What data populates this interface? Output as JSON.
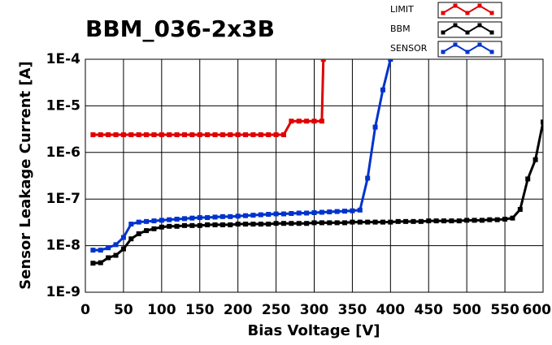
{
  "chart_data": {
    "type": "line",
    "title": "BBM_036-2x3B",
    "x_label": "Bias Voltage [V]",
    "y_label": "Sensor Leakage Current [A]",
    "ylog": true,
    "grid": true,
    "legend": "top-right",
    "xlim": [
      0,
      600
    ],
    "xticks": [
      0,
      50,
      100,
      150,
      200,
      250,
      300,
      350,
      400,
      450,
      500,
      550,
      600
    ],
    "ylim": [
      1e-09,
      0.0001
    ],
    "yticks": [
      {
        "value": 1e-09,
        "label": "1E-9"
      },
      {
        "value": 1e-08,
        "label": "1E-8"
      },
      {
        "value": 1e-07,
        "label": "1E-7"
      },
      {
        "value": 1e-06,
        "label": "1E-6"
      },
      {
        "value": 1e-05,
        "label": "1E-5"
      },
      {
        "value": 0.0001,
        "label": "1E-4"
      }
    ],
    "series": [
      {
        "name": "LIMIT",
        "color": "#e00000",
        "x": [
          10,
          20,
          30,
          40,
          50,
          60,
          70,
          80,
          90,
          100,
          110,
          120,
          130,
          140,
          150,
          160,
          170,
          180,
          190,
          200,
          210,
          220,
          230,
          240,
          250,
          260,
          270,
          280,
          290,
          300,
          310,
          312
        ],
        "values": [
          2.4e-06,
          2.4e-06,
          2.4e-06,
          2.4e-06,
          2.4e-06,
          2.4e-06,
          2.4e-06,
          2.4e-06,
          2.4e-06,
          2.4e-06,
          2.4e-06,
          2.4e-06,
          2.4e-06,
          2.4e-06,
          2.4e-06,
          2.4e-06,
          2.4e-06,
          2.4e-06,
          2.4e-06,
          2.4e-06,
          2.4e-06,
          2.4e-06,
          2.4e-06,
          2.4e-06,
          2.4e-06,
          2.4e-06,
          4.7e-06,
          4.7e-06,
          4.7e-06,
          4.7e-06,
          4.7e-06,
          0.0001
        ]
      },
      {
        "name": "BBM",
        "color": "#000000",
        "x": [
          10,
          20,
          30,
          40,
          50,
          60,
          70,
          80,
          90,
          100,
          110,
          120,
          130,
          140,
          150,
          160,
          170,
          180,
          190,
          200,
          210,
          220,
          230,
          240,
          250,
          260,
          270,
          280,
          290,
          300,
          310,
          320,
          330,
          340,
          350,
          360,
          370,
          380,
          390,
          400,
          410,
          420,
          430,
          440,
          450,
          460,
          470,
          480,
          490,
          500,
          510,
          520,
          530,
          540,
          550,
          560,
          570,
          580,
          590,
          600
        ],
        "values": [
          4.2e-09,
          4.3e-09,
          5.5e-09,
          6.2e-09,
          8.5e-09,
          1.4e-08,
          1.8e-08,
          2.1e-08,
          2.3e-08,
          2.5e-08,
          2.6e-08,
          2.6e-08,
          2.7e-08,
          2.7e-08,
          2.7e-08,
          2.8e-08,
          2.8e-08,
          2.8e-08,
          2.8e-08,
          2.9e-08,
          2.9e-08,
          2.9e-08,
          2.9e-08,
          2.9e-08,
          3e-08,
          3e-08,
          3e-08,
          3e-08,
          3e-08,
          3.1e-08,
          3.1e-08,
          3.1e-08,
          3.1e-08,
          3.1e-08,
          3.2e-08,
          3.2e-08,
          3.2e-08,
          3.2e-08,
          3.2e-08,
          3.2e-08,
          3.3e-08,
          3.3e-08,
          3.3e-08,
          3.3e-08,
          3.4e-08,
          3.4e-08,
          3.4e-08,
          3.4e-08,
          3.4e-08,
          3.5e-08,
          3.5e-08,
          3.5e-08,
          3.6e-08,
          3.6e-08,
          3.7e-08,
          3.9e-08,
          6e-08,
          2.7e-07,
          7e-07,
          4.5e-06
        ]
      },
      {
        "name": "SENSOR",
        "color": "#0033cc",
        "x": [
          10,
          20,
          30,
          40,
          50,
          60,
          70,
          80,
          90,
          100,
          110,
          120,
          130,
          140,
          150,
          160,
          170,
          180,
          190,
          200,
          210,
          220,
          230,
          240,
          250,
          260,
          270,
          280,
          290,
          300,
          310,
          320,
          330,
          340,
          350,
          360,
          370,
          380,
          390,
          400
        ],
        "values": [
          8e-09,
          8e-09,
          9e-09,
          1.05e-08,
          1.5e-08,
          2.9e-08,
          3.2e-08,
          3.3e-08,
          3.4e-08,
          3.5e-08,
          3.6e-08,
          3.7e-08,
          3.8e-08,
          3.9e-08,
          4e-08,
          4e-08,
          4.1e-08,
          4.2e-08,
          4.2e-08,
          4.3e-08,
          4.4e-08,
          4.5e-08,
          4.6e-08,
          4.7e-08,
          4.8e-08,
          4.8e-08,
          4.9e-08,
          5e-08,
          5e-08,
          5.1e-08,
          5.2e-08,
          5.3e-08,
          5.4e-08,
          5.5e-08,
          5.6e-08,
          5.8e-08,
          2.8e-07,
          3.5e-06,
          2.2e-05,
          0.0001
        ]
      }
    ]
  }
}
